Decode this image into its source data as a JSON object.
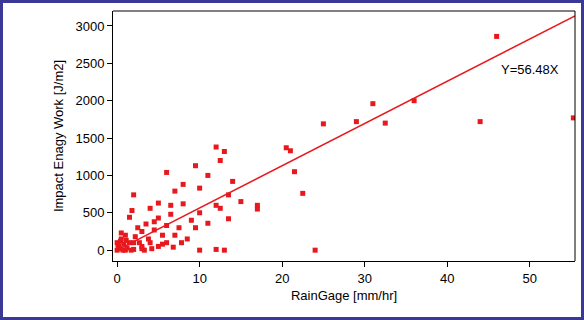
{
  "chart_data": {
    "type": "scatter",
    "xlabel": "RainGage [mm/hr]",
    "ylabel": "Impact Enagy Work [J/m2]",
    "xlim": [
      -0.5,
      55.5
    ],
    "xticks": [
      0,
      10,
      20,
      30,
      40,
      50
    ],
    "ylim": [
      -145,
      3200
    ],
    "yticks": [
      0,
      500,
      1000,
      1500,
      2000,
      2500,
      3000
    ],
    "grid": false,
    "series": [
      {
        "type": "scatter",
        "marker": "square",
        "color": "#e8191e",
        "x": [
          46,
          36,
          31,
          29,
          32.5,
          25,
          44,
          55.3,
          20.5,
          21,
          24,
          22.5,
          21.5,
          12,
          13,
          9.5,
          6,
          12.5,
          14,
          13.5,
          11,
          8,
          10,
          7,
          5,
          4,
          2,
          1.8,
          1.5,
          15,
          17,
          17,
          12,
          12.5,
          10,
          9,
          8,
          6.5,
          7.5,
          5,
          4.5,
          3.5,
          3,
          2.5,
          5.5,
          6,
          8.5,
          10,
          12,
          13,
          4,
          3,
          2,
          1,
          0.5,
          0.2,
          0,
          0.3,
          0.8,
          1.2,
          1.5,
          0,
          0.5,
          2.2,
          3.8,
          4.5,
          6.5,
          7,
          9.5,
          11,
          13.5,
          5.5,
          1,
          2,
          3,
          0.7,
          1.7,
          2.7,
          3.3,
          4.2,
          5,
          6,
          6.8,
          7.8,
          0.1,
          0.4,
          1.1
        ],
        "values": [
          2860,
          2000,
          1960,
          1720,
          1700,
          1690,
          1720,
          1770,
          1370,
          1330,
          0,
          760,
          1050,
          1380,
          1320,
          1130,
          1040,
          1200,
          920,
          740,
          1000,
          880,
          830,
          790,
          630,
          560,
          740,
          530,
          440,
          650,
          550,
          600,
          600,
          560,
          500,
          400,
          620,
          480,
          300,
          430,
          380,
          350,
          250,
          300,
          200,
          330,
          150,
          0,
          10,
          0,
          100,
          50,
          100,
          200,
          150,
          50,
          0,
          20,
          80,
          30,
          100,
          100,
          230,
          180,
          150,
          270,
          600,
          200,
          300,
          360,
          420,
          80,
          0,
          10,
          20,
          0,
          0,
          100,
          0,
          20,
          50,
          100,
          40,
          100,
          70,
          120,
          130
        ]
      },
      {
        "type": "line",
        "line_style": "solid",
        "color": "#e8191e",
        "x": [
          0,
          55.5
        ],
        "values": [
          0,
          3134.6
        ]
      }
    ],
    "annotations": [
      {
        "text": "Y=56.48X",
        "x": 50,
        "y": 2420
      }
    ]
  }
}
